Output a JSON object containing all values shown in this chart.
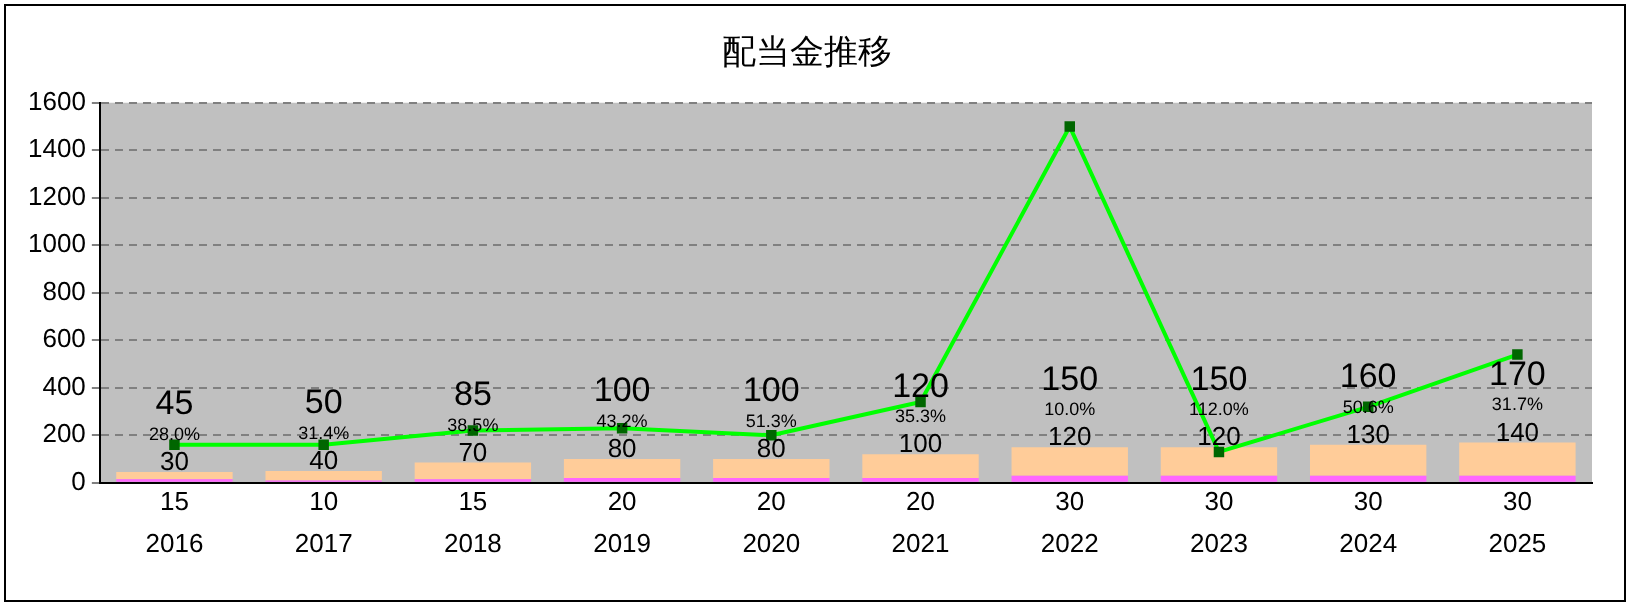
{
  "chart_data": {
    "type": "bar",
    "title": "配当金推移",
    "categories": [
      "2016",
      "2017",
      "2018",
      "2019",
      "2020",
      "2021",
      "2022",
      "2023",
      "2024",
      "2025"
    ],
    "stacked": true,
    "series": [
      {
        "color": "#ff66ff",
        "values": [
          15,
          10,
          15,
          20,
          20,
          20,
          30,
          30,
          30,
          30
        ],
        "value_labels": [
          "15",
          "10",
          "15",
          "20",
          "20",
          "20",
          "30",
          "30",
          "30",
          "30"
        ]
      },
      {
        "color": "#ffcc99",
        "values": [
          30,
          40,
          70,
          80,
          80,
          100,
          120,
          120,
          130,
          140
        ],
        "value_labels": [
          "30",
          "40",
          "70",
          "80",
          "80",
          "100",
          "120",
          "120",
          "130",
          "140"
        ]
      },
      {
        "type": "line",
        "color": "#00ff00",
        "marker": "square",
        "values": [
          160,
          160,
          220,
          230,
          200,
          340,
          1500,
          130,
          320,
          540
        ]
      }
    ],
    "totals": [
      "45",
      "50",
      "85",
      "100",
      "100",
      "120",
      "150",
      "150",
      "160",
      "170"
    ],
    "annotations": [
      "28.0%",
      "31.4%",
      "38.5%",
      "43.2%",
      "51.3%",
      "35.3%",
      "10.0%",
      "112.0%",
      "50.6%",
      "31.7%"
    ],
    "ylim": [
      0,
      1600
    ],
    "yticks": [
      0,
      200,
      400,
      600,
      800,
      1000,
      1200,
      1400,
      1600
    ],
    "grid": "y",
    "legend": false
  }
}
